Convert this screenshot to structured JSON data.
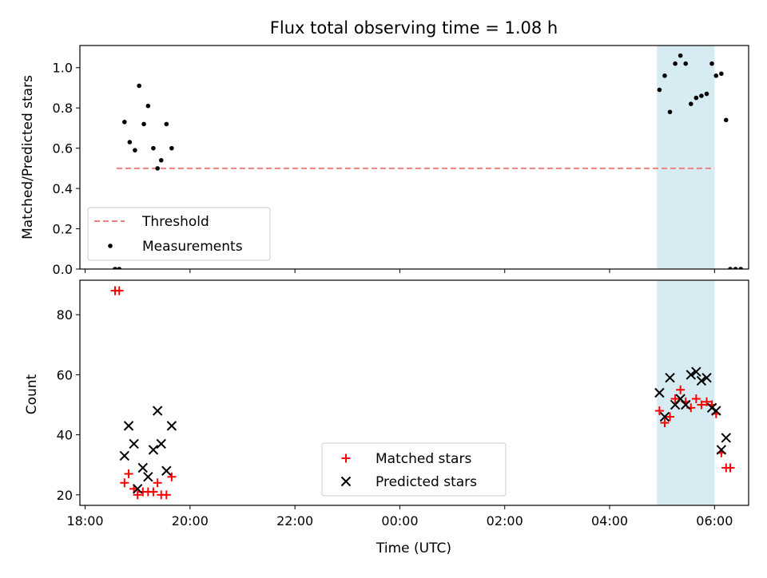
{
  "chart_data": [
    {
      "type": "scatter",
      "title": "Flux total observing time = 1.08 h",
      "xlabel": "",
      "ylabel": "Matched/Predicted stars",
      "x_unit": "hours from 18:00 UTC",
      "xlim": [
        -0.1,
        12.65
      ],
      "ylim": [
        0.0,
        1.11
      ],
      "yticks": [
        0.0,
        0.2,
        0.4,
        0.6,
        0.8,
        1.0
      ],
      "ytick_labels": [
        "0.0",
        "0.2",
        "0.4",
        "0.6",
        "0.8",
        "1.0"
      ],
      "shaded_span": [
        10.9,
        12.0
      ],
      "shaded_color": "#add8e6",
      "threshold": {
        "label": "Threshold",
        "y": 0.5,
        "x_range": [
          0.6,
          12.0
        ],
        "color": "#f08080"
      },
      "series": [
        {
          "name": "Measurements",
          "marker": "dot",
          "color": "#000000",
          "x": [
            0.57,
            0.65,
            0.75,
            0.85,
            0.95,
            1.03,
            1.12,
            1.2,
            1.3,
            1.38,
            1.45,
            1.55,
            1.65,
            10.95,
            11.05,
            11.15,
            11.25,
            11.35,
            11.45,
            11.55,
            11.65,
            11.75,
            11.85,
            11.95,
            12.03,
            12.13,
            12.22,
            12.3,
            12.4,
            12.5
          ],
          "y": [
            0.0,
            0.0,
            0.73,
            0.63,
            0.59,
            0.91,
            0.72,
            0.81,
            0.6,
            0.5,
            0.54,
            0.72,
            0.6,
            0.89,
            0.96,
            0.78,
            1.02,
            1.06,
            1.02,
            0.82,
            0.85,
            0.86,
            0.87,
            1.02,
            0.96,
            0.97,
            0.74,
            0.0,
            0.0,
            0.0
          ]
        }
      ],
      "legend": {
        "position": "lower-left",
        "entries": [
          "Threshold",
          "Measurements"
        ]
      }
    },
    {
      "type": "scatter",
      "title": "",
      "xlabel": "Time (UTC)",
      "ylabel": "Count",
      "x_unit": "hours from 18:00 UTC",
      "xlim": [
        -0.1,
        12.65
      ],
      "ylim": [
        16.5,
        91.5
      ],
      "yticks": [
        20,
        40,
        60,
        80
      ],
      "ytick_labels": [
        "20",
        "40",
        "60",
        "80"
      ],
      "xticks": [
        0,
        2,
        4,
        6,
        8,
        10,
        12
      ],
      "xtick_labels": [
        "18:00",
        "20:00",
        "22:00",
        "00:00",
        "02:00",
        "04:00",
        "06:00"
      ],
      "shaded_span": [
        10.9,
        12.0
      ],
      "shaded_color": "#add8e6",
      "series": [
        {
          "name": "Matched stars",
          "marker": "plus",
          "color": "#ff0000",
          "x": [
            0.57,
            0.65,
            0.75,
            0.83,
            0.93,
            1.0,
            1.1,
            1.2,
            1.3,
            1.38,
            1.45,
            1.55,
            1.65,
            10.95,
            11.05,
            11.15,
            11.25,
            11.35,
            11.45,
            11.55,
            11.65,
            11.75,
            11.85,
            11.95,
            12.03,
            12.13,
            12.22,
            12.3
          ],
          "y": [
            88,
            88,
            24,
            27,
            22,
            20,
            21,
            21,
            21,
            24,
            20,
            20,
            26,
            48,
            44,
            46,
            52,
            55,
            51,
            49,
            52,
            50,
            51,
            50,
            47,
            34,
            29,
            29
          ]
        },
        {
          "name": "Predicted stars",
          "marker": "x",
          "color": "#000000",
          "x": [
            0.75,
            0.83,
            0.93,
            1.0,
            1.1,
            1.2,
            1.3,
            1.38,
            1.45,
            1.55,
            1.65,
            10.95,
            11.05,
            11.15,
            11.25,
            11.35,
            11.45,
            11.55,
            11.65,
            11.75,
            11.85,
            11.95,
            12.03,
            12.13,
            12.22
          ],
          "y": [
            33,
            43,
            37,
            22,
            29,
            26,
            35,
            48,
            37,
            28,
            43,
            54,
            46,
            59,
            50,
            52,
            50,
            60,
            61,
            58,
            59,
            49,
            48,
            35,
            39
          ]
        }
      ],
      "legend": {
        "position": "lower-center",
        "entries": [
          "Matched stars",
          "Predicted stars"
        ]
      }
    }
  ]
}
